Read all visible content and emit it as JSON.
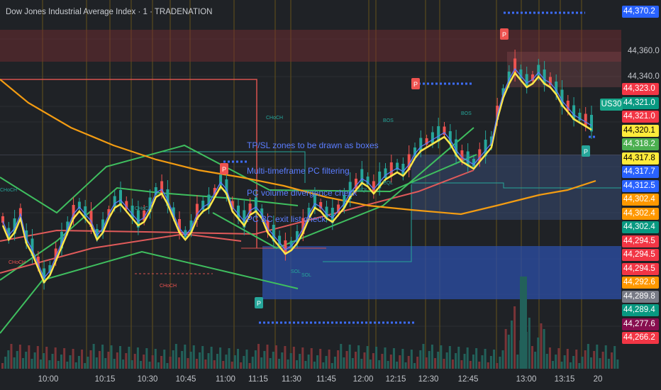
{
  "header": {
    "title": "Dow Jones Industrial Average Index · 1 · TRADENATION"
  },
  "symbol_tag": "US30",
  "annotations": [
    "TP/SL zones to be drawn as boxes",
    "Multi-timeframe PC filtering",
    "PC volume divergence check",
    "PC BC exit list check"
  ],
  "chart_data": {
    "type": "candlestick",
    "title": "Dow Jones Industrial Average Index · 1 · TRADENATION",
    "x_ticks": [
      "10:00",
      "10:15",
      "10:30",
      "10:45",
      "11:00",
      "11:15",
      "11:30",
      "11:45",
      "12:00",
      "12:15",
      "12:30",
      "12:45",
      "13:00",
      "13:15",
      "20"
    ],
    "y_grid_labels": [
      "44,360.0",
      "44,340.0"
    ],
    "price_labels": [
      {
        "value": "44,370.2",
        "color": "#2962ff"
      },
      {
        "value": "44,323.0",
        "color": "#f23645"
      },
      {
        "value": "44,321.0",
        "color": "#089981"
      },
      {
        "value": "44,321.0",
        "color": "#f23645"
      },
      {
        "value": "44,320.1",
        "color": "#ffeb3b"
      },
      {
        "value": "44,318.2",
        "color": "#4caf50"
      },
      {
        "value": "44,317.8",
        "color": "#ffeb3b"
      },
      {
        "value": "44,317.7",
        "color": "#2962ff"
      },
      {
        "value": "44,312.5",
        "color": "#2962ff"
      },
      {
        "value": "44,302.4",
        "color": "#ff9800"
      },
      {
        "value": "44,302.4",
        "color": "#ff9800"
      },
      {
        "value": "44,302.4",
        "color": "#089981"
      },
      {
        "value": "44,294.5",
        "color": "#f23645"
      },
      {
        "value": "44,294.5",
        "color": "#f23645"
      },
      {
        "value": "44,294.5",
        "color": "#f23645"
      },
      {
        "value": "44,292.6",
        "color": "#ff9800"
      },
      {
        "value": "44,289.8",
        "color": "#787b86"
      },
      {
        "value": "44,289.4",
        "color": "#089981"
      },
      {
        "value": "44,277.6",
        "color": "#880e4f"
      },
      {
        "value": "44,266.2",
        "color": "#f23645"
      }
    ],
    "structure_labels": [
      "CHoCH",
      "CHoCH",
      "CHoCH",
      "CHoCH",
      "CHoCH",
      "BOS",
      "BOS",
      "EQL",
      "EQL",
      "SOL",
      "SOL"
    ],
    "pivot_markers": [
      "P",
      "P",
      "P",
      "P",
      "P"
    ],
    "grid": true,
    "legend": "none"
  }
}
